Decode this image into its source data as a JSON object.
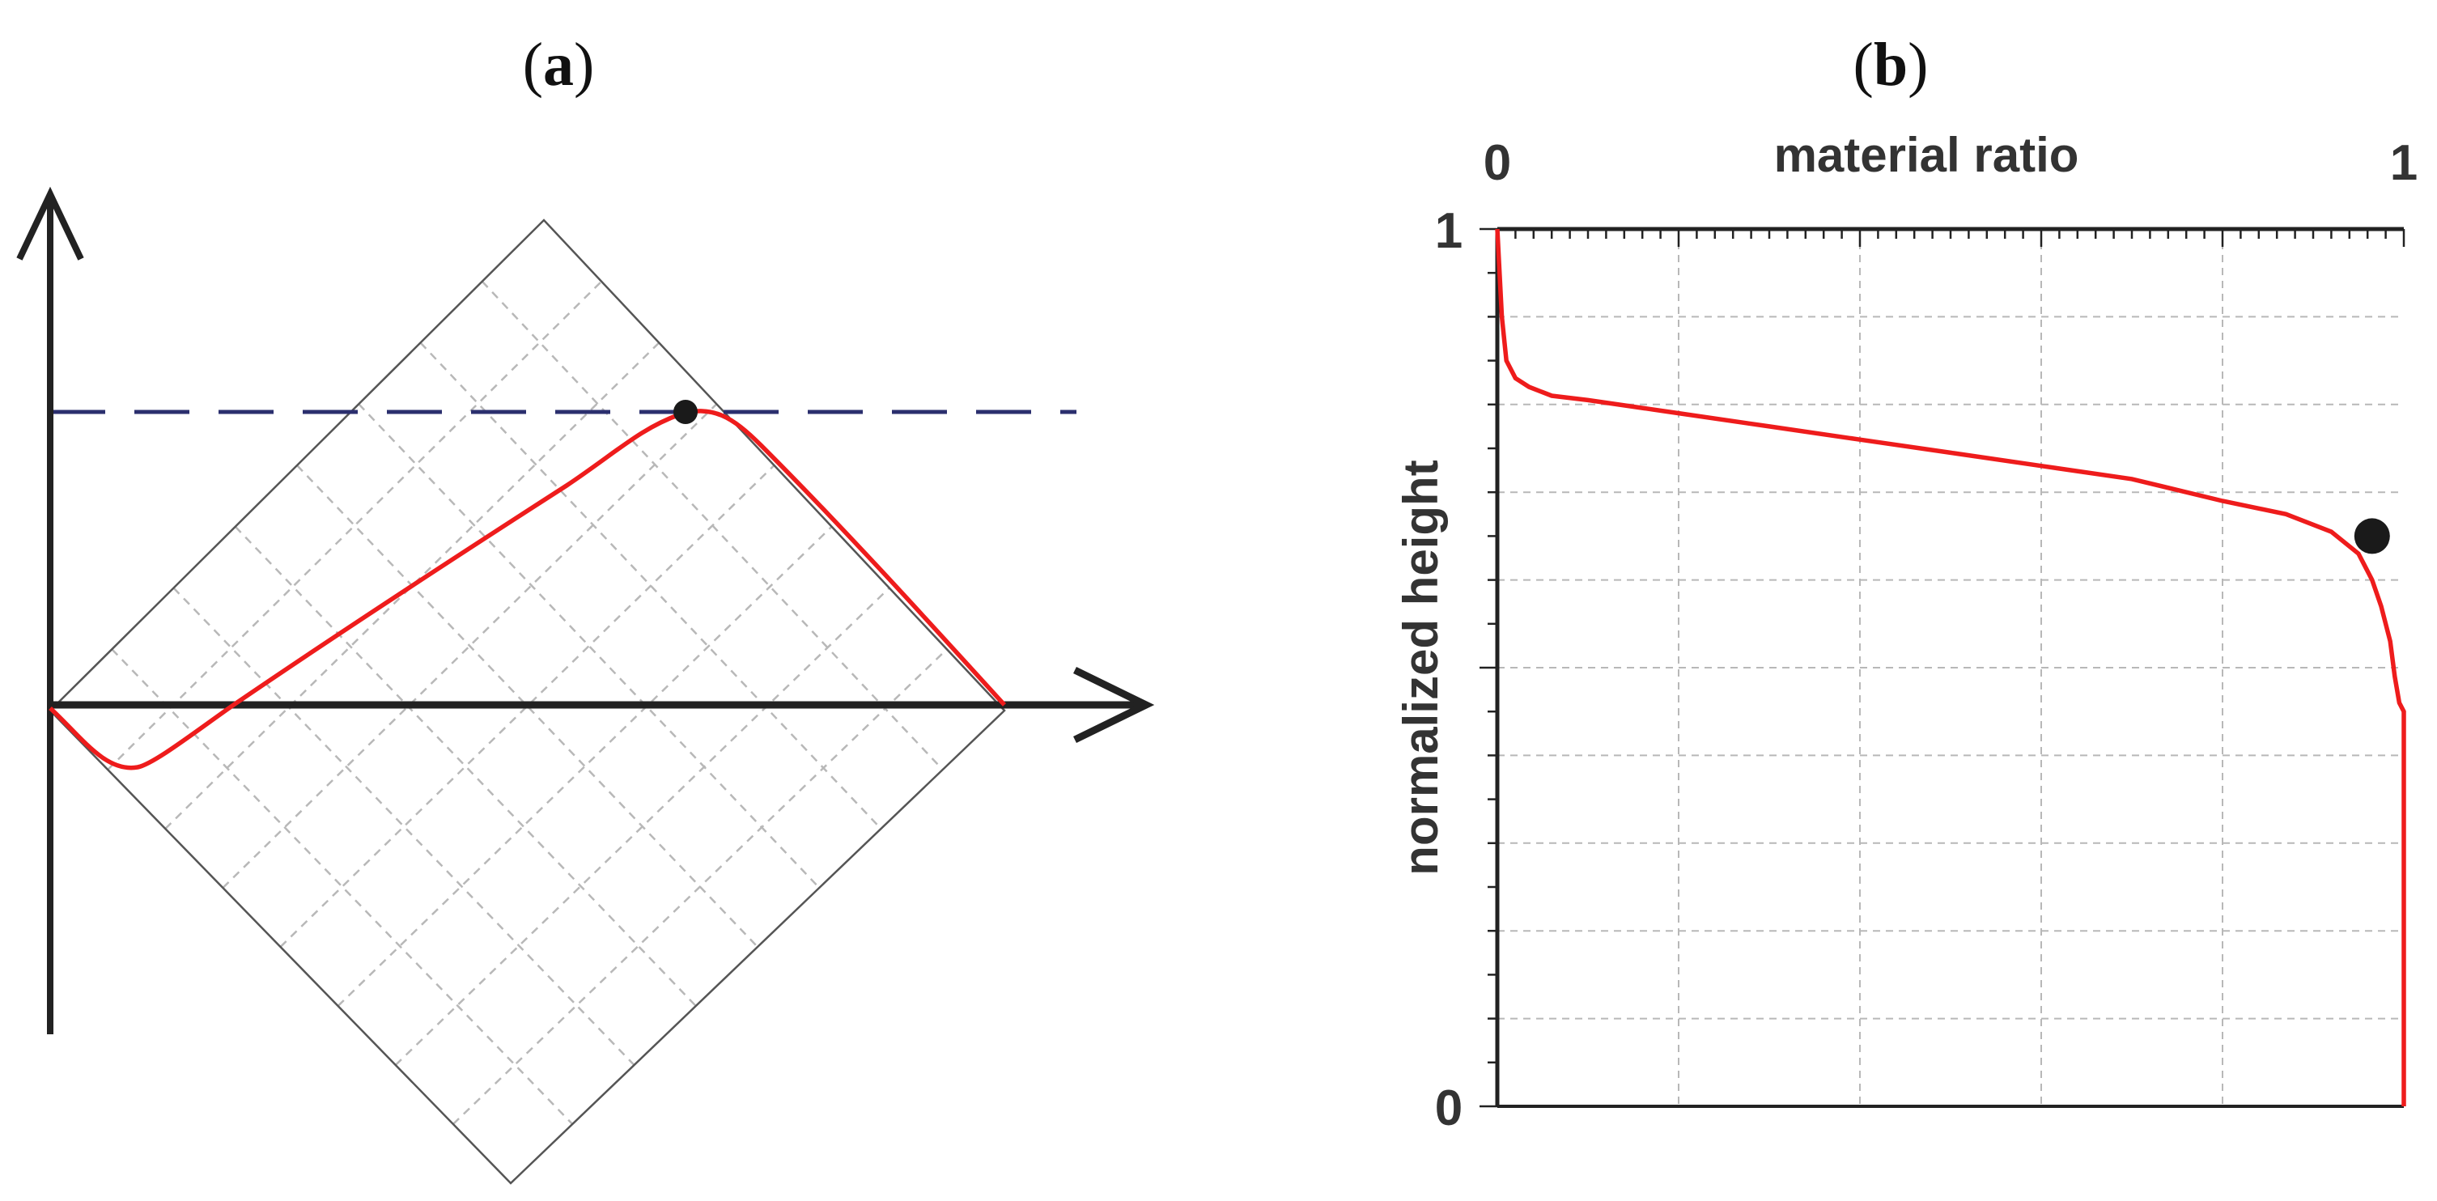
{
  "panel_a": {
    "label_open": "(",
    "label_letter": "a",
    "label_close": ")"
  },
  "panel_b": {
    "label_open": "(",
    "label_letter": "b",
    "label_close": ")"
  },
  "colors": {
    "curve": "#ee1c1c",
    "dashed_line": "#2b2f6e",
    "axis": "#222222",
    "grid": "#b8b8b8",
    "marker": "#1a1a1a"
  },
  "chart_data": [
    {
      "type": "line",
      "title": "",
      "xlabel": "",
      "ylabel": "",
      "grid": true,
      "note_x_axis_arrow": true,
      "series": [
        {
          "values": []
        }
      ]
    },
    {
      "type": "line",
      "title": "",
      "xlabel": "material ratio",
      "ylabel": "normalized height",
      "xlim": [
        0,
        1
      ],
      "ylim": [
        0,
        1
      ],
      "x_tick_labels": [
        "0",
        "1"
      ],
      "y_tick_labels": [
        "0",
        "1"
      ],
      "grid": true,
      "series": [
        {
          "x": [
            0.0,
            0.002,
            0.005,
            0.01,
            0.02,
            0.035,
            0.06,
            0.1,
            0.2,
            0.3,
            0.4,
            0.5,
            0.6,
            0.7,
            0.8,
            0.87,
            0.92,
            0.95,
            0.965,
            0.975,
            0.985,
            0.99,
            0.995,
            1.0,
            1.0
          ],
          "y": [
            1.0,
            0.96,
            0.9,
            0.85,
            0.83,
            0.82,
            0.81,
            0.805,
            0.79,
            0.775,
            0.76,
            0.745,
            0.73,
            0.715,
            0.69,
            0.675,
            0.655,
            0.63,
            0.6,
            0.57,
            0.53,
            0.49,
            0.46,
            0.45,
            0.0
          ]
        }
      ],
      "marker": {
        "x": 0.965,
        "y": 0.65
      }
    }
  ]
}
